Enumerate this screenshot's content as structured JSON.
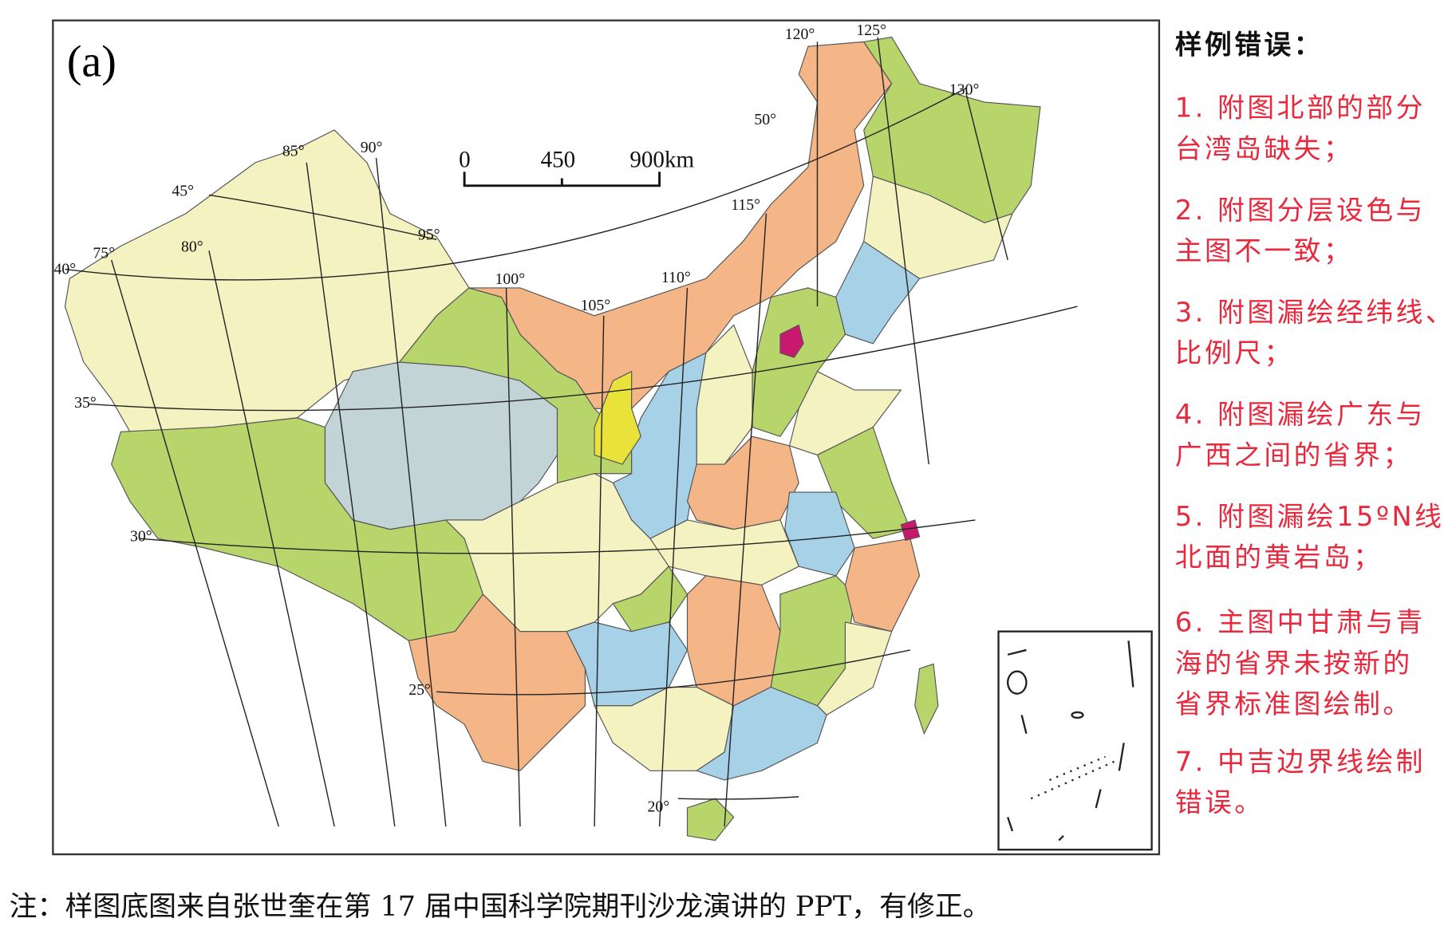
{
  "panel_label": "(a)",
  "scale_bar": {
    "labels": [
      "0",
      "450",
      "900km"
    ]
  },
  "graticule_labels": [
    "120°",
    "125°",
    "130°",
    "50°",
    "115°",
    "85°",
    "90°",
    "45°",
    "95°",
    "75°",
    "80°",
    "40°",
    "100°",
    "105°",
    "110°",
    "35°",
    "30°",
    "25°",
    "20°"
  ],
  "legend": {
    "title": "样例错误：",
    "items": [
      [
        "1. 附图北部的部分",
        "台湾岛缺失；"
      ],
      [
        "2. 附图分层设色与",
        "主图不一致；"
      ],
      [
        "3. 附图漏绘经纬线、",
        "比例尺；"
      ],
      [
        "4. 附图漏绘广东与",
        "广西之间的省界；"
      ],
      [
        "5. 附图漏绘15ºN线",
        "北面的黄岩岛；"
      ],
      [
        "6. 主图中甘肃与青",
        "海的省界未按新的",
        "省界标准图绘制。"
      ],
      [
        "7. 中吉边界线绘制",
        "错误。"
      ]
    ]
  },
  "footer": "注：样图底图来自张世奎在第 17 届中国科学院期刊沙龙演讲的 PPT，有修正。"
}
